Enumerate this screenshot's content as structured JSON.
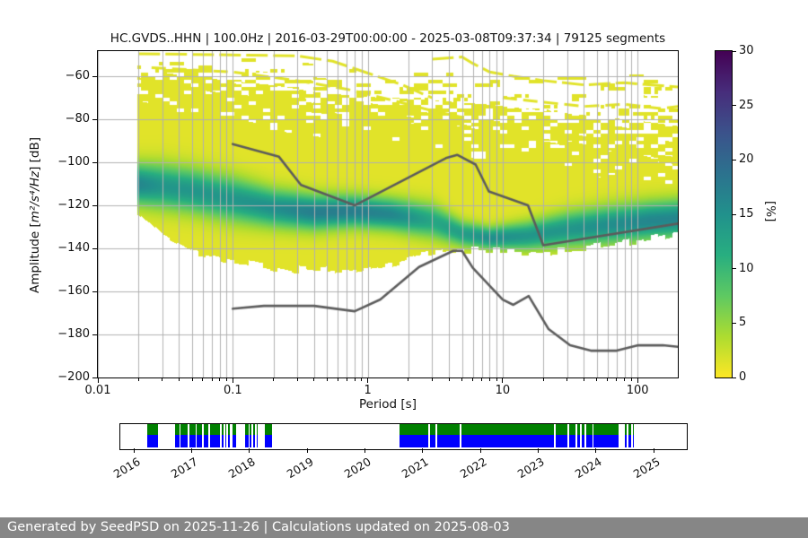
{
  "title": "HC.GVDS..HHN | 100.0Hz | 2016-03-29T00:00:00 - 2025-03-08T09:37:34 | 79125 segments",
  "footer": "Generated by SeedPSD on 2025-11-26 | Calculations updated on 2025-08-03",
  "axes": {
    "xlabel": "Period [s]",
    "ylabel_prefix": "Amplitude [",
    "ylabel_math": "m²/s⁴/Hz",
    "ylabel_suffix": "] [dB]",
    "xlim": [
      0.01,
      200
    ],
    "ylim": [
      -200,
      -48.3
    ],
    "x_ticks": [
      {
        "v": 0.01,
        "label": "0.01"
      },
      {
        "v": 0.1,
        "label": "0.1"
      },
      {
        "v": 1,
        "label": "1"
      },
      {
        "v": 10,
        "label": "10"
      },
      {
        "v": 100,
        "label": "100"
      }
    ],
    "y_ticks": [
      {
        "v": -60,
        "label": "−60"
      },
      {
        "v": -80,
        "label": "−80"
      },
      {
        "v": -100,
        "label": "−100"
      },
      {
        "v": -120,
        "label": "−120"
      },
      {
        "v": -140,
        "label": "−140"
      },
      {
        "v": -160,
        "label": "−160"
      },
      {
        "v": -180,
        "label": "−180"
      },
      {
        "v": -200,
        "label": "−200"
      }
    ],
    "grid_color": "#b0b0b0"
  },
  "colorbar": {
    "label": "[%]",
    "min": 0,
    "max": 30,
    "ticks": [
      0,
      5,
      10,
      15,
      20,
      25,
      30
    ]
  },
  "chart_data": {
    "type": "heatmap",
    "title": "HC.GVDS..HHN | 100.0Hz | 2016-03-29T00:00:00 - 2025-03-08T09:37:34 | 79125 segments",
    "xlabel": "Period [s]",
    "ylabel": "Amplitude [m²/s⁴/Hz] [dB]",
    "zlabel": "[%]",
    "x_range_s": [
      0.01,
      200
    ],
    "y_range_db": [
      -200,
      -48.3
    ],
    "z_range_pct": [
      0,
      30
    ],
    "colormap_viridis_reversed": [
      [
        0.0,
        "#440154"
      ],
      [
        0.125,
        "#472d7b"
      ],
      [
        0.25,
        "#3b528b"
      ],
      [
        0.375,
        "#2c728e"
      ],
      [
        0.5,
        "#21918c"
      ],
      [
        0.625,
        "#28ae80"
      ],
      [
        0.75,
        "#5ec962"
      ],
      [
        0.875,
        "#addc30"
      ],
      [
        1.0,
        "#fde725"
      ]
    ],
    "heatmap_columns": [
      {
        "T": 0.02,
        "sparse_top": -49,
        "holey_top": -58,
        "solid_top": -62,
        "mode_db": -110,
        "sigma_db": 6.5,
        "peak_pct": 15,
        "bottom_db": -125
      },
      {
        "T": 0.03,
        "sparse_top": -49,
        "holey_top": -58,
        "solid_top": -64,
        "mode_db": -111,
        "sigma_db": 7.0,
        "peak_pct": 13,
        "bottom_db": -135
      },
      {
        "T": 0.05,
        "sparse_top": -49,
        "holey_top": -60,
        "solid_top": -66,
        "mode_db": -113,
        "sigma_db": 7.0,
        "peak_pct": 13,
        "bottom_db": -142
      },
      {
        "T": 0.1,
        "sparse_top": -50,
        "holey_top": -62,
        "solid_top": -70,
        "mode_db": -117,
        "sigma_db": 7.0,
        "peak_pct": 13,
        "bottom_db": -146
      },
      {
        "T": 0.2,
        "sparse_top": -52,
        "holey_top": -64,
        "solid_top": -73,
        "mode_db": -121,
        "sigma_db": 6.0,
        "peak_pct": 14,
        "bottom_db": -149
      },
      {
        "T": 0.4,
        "sparse_top": -54,
        "holey_top": -67,
        "solid_top": -76,
        "mode_db": -123,
        "sigma_db": 5.5,
        "peak_pct": 16,
        "bottom_db": -151
      },
      {
        "T": 0.8,
        "sparse_top": -56,
        "holey_top": -69,
        "solid_top": -78,
        "mode_db": -122.5,
        "sigma_db": 5.0,
        "peak_pct": 16,
        "bottom_db": -150
      },
      {
        "T": 1.5,
        "sparse_top": -57,
        "holey_top": -70,
        "solid_top": -80,
        "mode_db": -124,
        "sigma_db": 5.0,
        "peak_pct": 15,
        "bottom_db": -147
      },
      {
        "T": 3,
        "sparse_top": -57,
        "holey_top": -71,
        "solid_top": -83,
        "mode_db": -127,
        "sigma_db": 5.5,
        "peak_pct": 11,
        "bottom_db": -143
      },
      {
        "T": 5,
        "sparse_top": -57,
        "holey_top": -72,
        "solid_top": -85,
        "mode_db": -133,
        "sigma_db": 4.0,
        "peak_pct": 12,
        "bottom_db": -141
      },
      {
        "T": 8,
        "sparse_top": -58,
        "holey_top": -73,
        "solid_top": -87,
        "mode_db": -135,
        "sigma_db": 3.5,
        "peak_pct": 14,
        "bottom_db": -141
      },
      {
        "T": 15,
        "sparse_top": -58,
        "holey_top": -75,
        "solid_top": -90,
        "mode_db": -134,
        "sigma_db": 4.5,
        "peak_pct": 13,
        "bottom_db": -142
      },
      {
        "T": 30,
        "sparse_top": -58,
        "holey_top": -77,
        "solid_top": -93,
        "mode_db": -131,
        "sigma_db": 5.5,
        "peak_pct": 13,
        "bottom_db": -141
      },
      {
        "T": 60,
        "sparse_top": -58,
        "holey_top": -79,
        "solid_top": -96,
        "mode_db": -129,
        "sigma_db": 6.0,
        "peak_pct": 14,
        "bottom_db": -139
      },
      {
        "T": 120,
        "sparse_top": -58,
        "holey_top": -81,
        "solid_top": -98,
        "mode_db": -127,
        "sigma_db": 6.0,
        "peak_pct": 15,
        "bottom_db": -136
      },
      {
        "T": 200,
        "sparse_top": -58,
        "holey_top": -83,
        "solid_top": -100,
        "mode_db": -126,
        "sigma_db": 6.0,
        "peak_pct": 15,
        "bottom_db": -133
      }
    ],
    "streaks": [
      [
        [
          0.02,
          -49.5
        ],
        [
          0.3,
          -50.5
        ],
        [
          0.55,
          -53
        ],
        [
          1,
          -58.5
        ],
        [
          1.8,
          -64
        ],
        [
          3,
          -70
        ]
      ],
      [
        [
          0.025,
          -56
        ],
        [
          0.1,
          -58
        ],
        [
          0.3,
          -62
        ],
        [
          0.7,
          -66
        ],
        [
          1.5,
          -71
        ],
        [
          3,
          -76
        ],
        [
          5,
          -79
        ]
      ],
      [
        [
          3,
          -52
        ],
        [
          5,
          -51
        ],
        [
          6,
          -54
        ],
        [
          8,
          -58
        ],
        [
          12,
          -60
        ],
        [
          20,
          -62
        ],
        [
          40,
          -64
        ],
        [
          80,
          -63
        ],
        [
          200,
          -65
        ]
      ],
      [
        [
          10,
          -70
        ],
        [
          20,
          -72
        ],
        [
          40,
          -74
        ],
        [
          80,
          -73
        ],
        [
          150,
          -75
        ],
        [
          200,
          -74
        ]
      ]
    ],
    "noise_models": {
      "color": "#5c5c5c",
      "nhnm": [
        [
          0.1,
          -91.5
        ],
        [
          0.22,
          -97.4
        ],
        [
          0.32,
          -110.5
        ],
        [
          0.8,
          -120
        ],
        [
          3.8,
          -98
        ],
        [
          4.6,
          -96.5
        ],
        [
          6.3,
          -101
        ],
        [
          7.9,
          -113.5
        ],
        [
          15.4,
          -120
        ],
        [
          20,
          -138.5
        ],
        [
          200,
          -128.4
        ]
      ],
      "nlnm": [
        [
          0.1,
          -168
        ],
        [
          0.17,
          -166.7
        ],
        [
          0.4,
          -166.7
        ],
        [
          0.8,
          -169.2
        ],
        [
          1.24,
          -163.7
        ],
        [
          2.4,
          -148.6
        ],
        [
          4.3,
          -141.1
        ],
        [
          5,
          -141.1
        ],
        [
          6,
          -149
        ],
        [
          10,
          -163.8
        ],
        [
          12,
          -166.2
        ],
        [
          15.6,
          -162.1
        ],
        [
          21.9,
          -177.5
        ],
        [
          31.6,
          -185
        ],
        [
          45,
          -187.5
        ],
        [
          70,
          -187.5
        ],
        [
          101,
          -185
        ],
        [
          154,
          -185
        ],
        [
          200,
          -185.7
        ]
      ]
    },
    "availability_timeline": {
      "year_ticks": [
        2016,
        2017,
        2018,
        2019,
        2020,
        2021,
        2022,
        2023,
        2024,
        2025
      ],
      "range_years": [
        2015.77,
        2025.58
      ],
      "psd_color": "#008000",
      "data_color": "#0000ff",
      "segments_years": [
        [
          2016.24,
          2016.42
        ],
        [
          2016.72,
          2016.79
        ],
        [
          2016.81,
          2016.94
        ],
        [
          2016.97,
          2017.07
        ],
        [
          2017.09,
          2017.19
        ],
        [
          2017.21,
          2017.29
        ],
        [
          2017.33,
          2017.5
        ],
        [
          2017.52,
          2017.56
        ],
        [
          2017.59,
          2017.61
        ],
        [
          2017.64,
          2017.66
        ],
        [
          2017.72,
          2017.77
        ],
        [
          2017.93,
          2017.99
        ],
        [
          2018.01,
          2018.04
        ],
        [
          2018.07,
          2018.1
        ],
        [
          2018.13,
          2018.15
        ],
        [
          2018.28,
          2018.4
        ],
        [
          2020.61,
          2021.11
        ],
        [
          2021.14,
          2021.23
        ],
        [
          2021.26,
          2021.64
        ],
        [
          2021.67,
          2023.28
        ],
        [
          2023.31,
          2023.52
        ],
        [
          2023.55,
          2023.65
        ],
        [
          2023.68,
          2023.73
        ],
        [
          2023.76,
          2023.81
        ],
        [
          2023.84,
          2023.94
        ],
        [
          2023.97,
          2024.4
        ],
        [
          2024.51,
          2024.54
        ],
        [
          2024.57,
          2024.62
        ],
        [
          2024.65,
          2024.67
        ]
      ]
    }
  }
}
